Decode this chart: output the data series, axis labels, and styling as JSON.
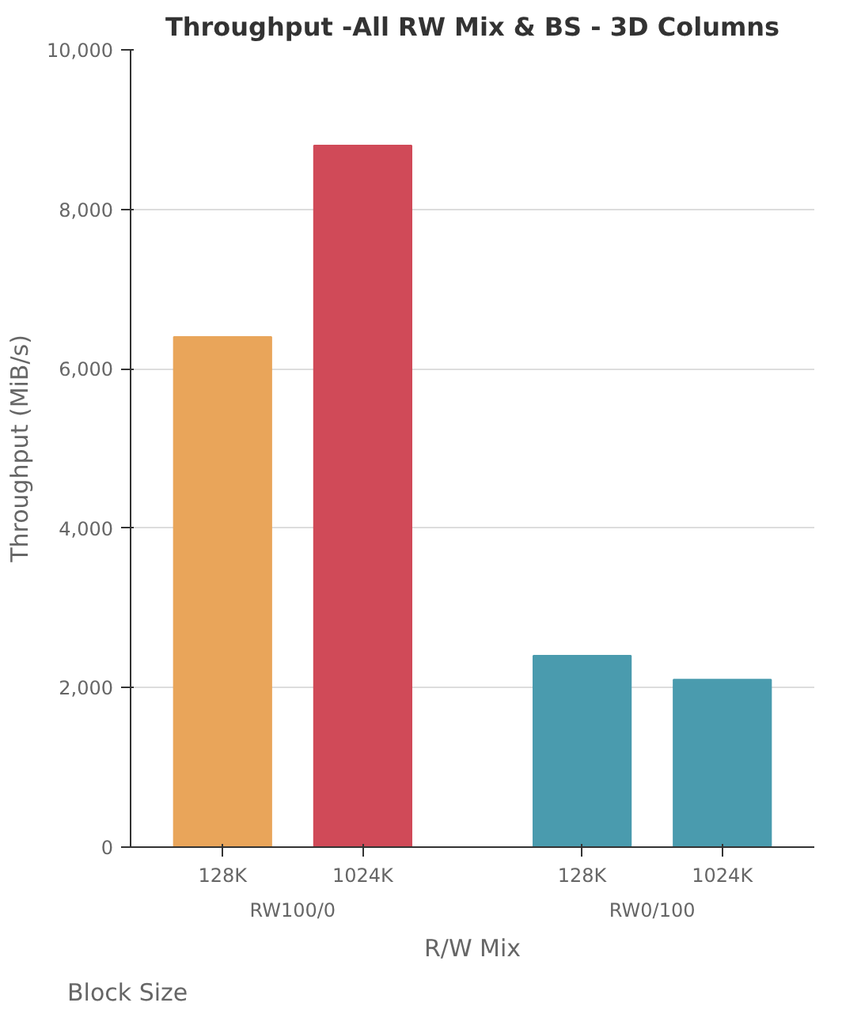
{
  "chart_data": {
    "type": "bar",
    "title": "Throughput -All RW Mix & BS - 3D Columns",
    "xlabel": "R/W Mix",
    "ylabel": "Throughput (MiB/s)",
    "annotations": [
      "Block Size"
    ],
    "categories": [
      "RW100/0",
      "RW0/100"
    ],
    "series": [
      {
        "name": "128K",
        "colors": [
          "#e9a55a",
          "#4a9bae"
        ],
        "values": [
          6400,
          2400
        ]
      },
      {
        "name": "1024K",
        "colors": [
          "#d04a58",
          "#4a9bae"
        ],
        "values": [
          8800,
          2100
        ]
      }
    ],
    "ylim": [
      0,
      10000
    ],
    "yticks": [
      0,
      {
        "value": 2000,
        "label": "2,000"
      },
      {
        "value": 4000,
        "label": "4,000"
      },
      {
        "value": 6000,
        "label": "6,000"
      },
      {
        "value": 8000,
        "label": "8,000"
      },
      {
        "value": 10000,
        "label": "10,000"
      }
    ],
    "grid": "y"
  }
}
